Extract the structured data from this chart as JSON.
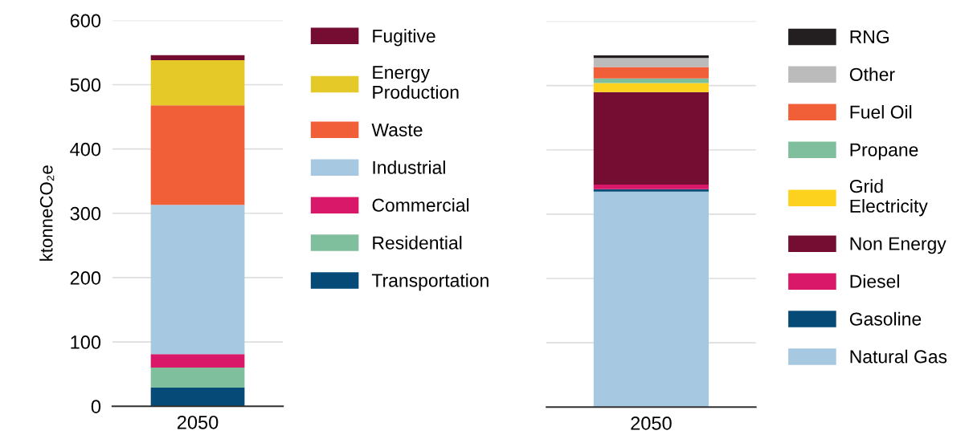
{
  "chart_data": [
    {
      "type": "bar",
      "stacked": true,
      "categories": [
        "2050"
      ],
      "ylabel": "ktonneCO₂e",
      "ylim": [
        0,
        600
      ],
      "yticks": [
        0,
        100,
        200,
        300,
        400,
        500,
        600
      ],
      "grid": "y",
      "legend": "right",
      "series": [
        {
          "name": "Transportation",
          "color": "#064b78",
          "values": [
            29
          ]
        },
        {
          "name": "Residential",
          "color": "#80bf9e",
          "values": [
            31
          ]
        },
        {
          "name": "Commercial",
          "color": "#da1869",
          "values": [
            21
          ]
        },
        {
          "name": "Industrial",
          "color": "#a6c8e0",
          "values": [
            232
          ]
        },
        {
          "name": "Waste",
          "color": "#f15f38",
          "values": [
            155
          ]
        },
        {
          "name": "Energy\nProduction",
          "color": "#e4c928",
          "values": [
            70
          ]
        },
        {
          "name": "Fugitive",
          "color": "#740d31",
          "values": [
            8
          ]
        }
      ]
    },
    {
      "type": "bar",
      "stacked": true,
      "categories": [
        "2050"
      ],
      "ylim": [
        0,
        600
      ],
      "yticks": [
        0,
        100,
        200,
        300,
        400,
        500,
        600
      ],
      "grid": "y",
      "legend": "right",
      "tick_labels": "x",
      "series": [
        {
          "name": "Natural Gas",
          "color": "#a6c8e0",
          "values": [
            335
          ]
        },
        {
          "name": "Gasoline",
          "color": "#064b78",
          "values": [
            4
          ]
        },
        {
          "name": "Diesel",
          "color": "#da1869",
          "values": [
            7
          ]
        },
        {
          "name": "Non Energy",
          "color": "#740d31",
          "values": [
            144
          ]
        },
        {
          "name": "Grid\nElectricity",
          "color": "#fcd21e",
          "values": [
            14
          ]
        },
        {
          "name": "Propane",
          "color": "#80bf9e",
          "values": [
            7
          ]
        },
        {
          "name": "Fuel Oil",
          "color": "#f15f38",
          "values": [
            18
          ]
        },
        {
          "name": "Other",
          "color": "#bbbbbb",
          "values": [
            14
          ]
        },
        {
          "name": "RNG",
          "color": "#231f20",
          "values": [
            4
          ]
        }
      ]
    }
  ]
}
